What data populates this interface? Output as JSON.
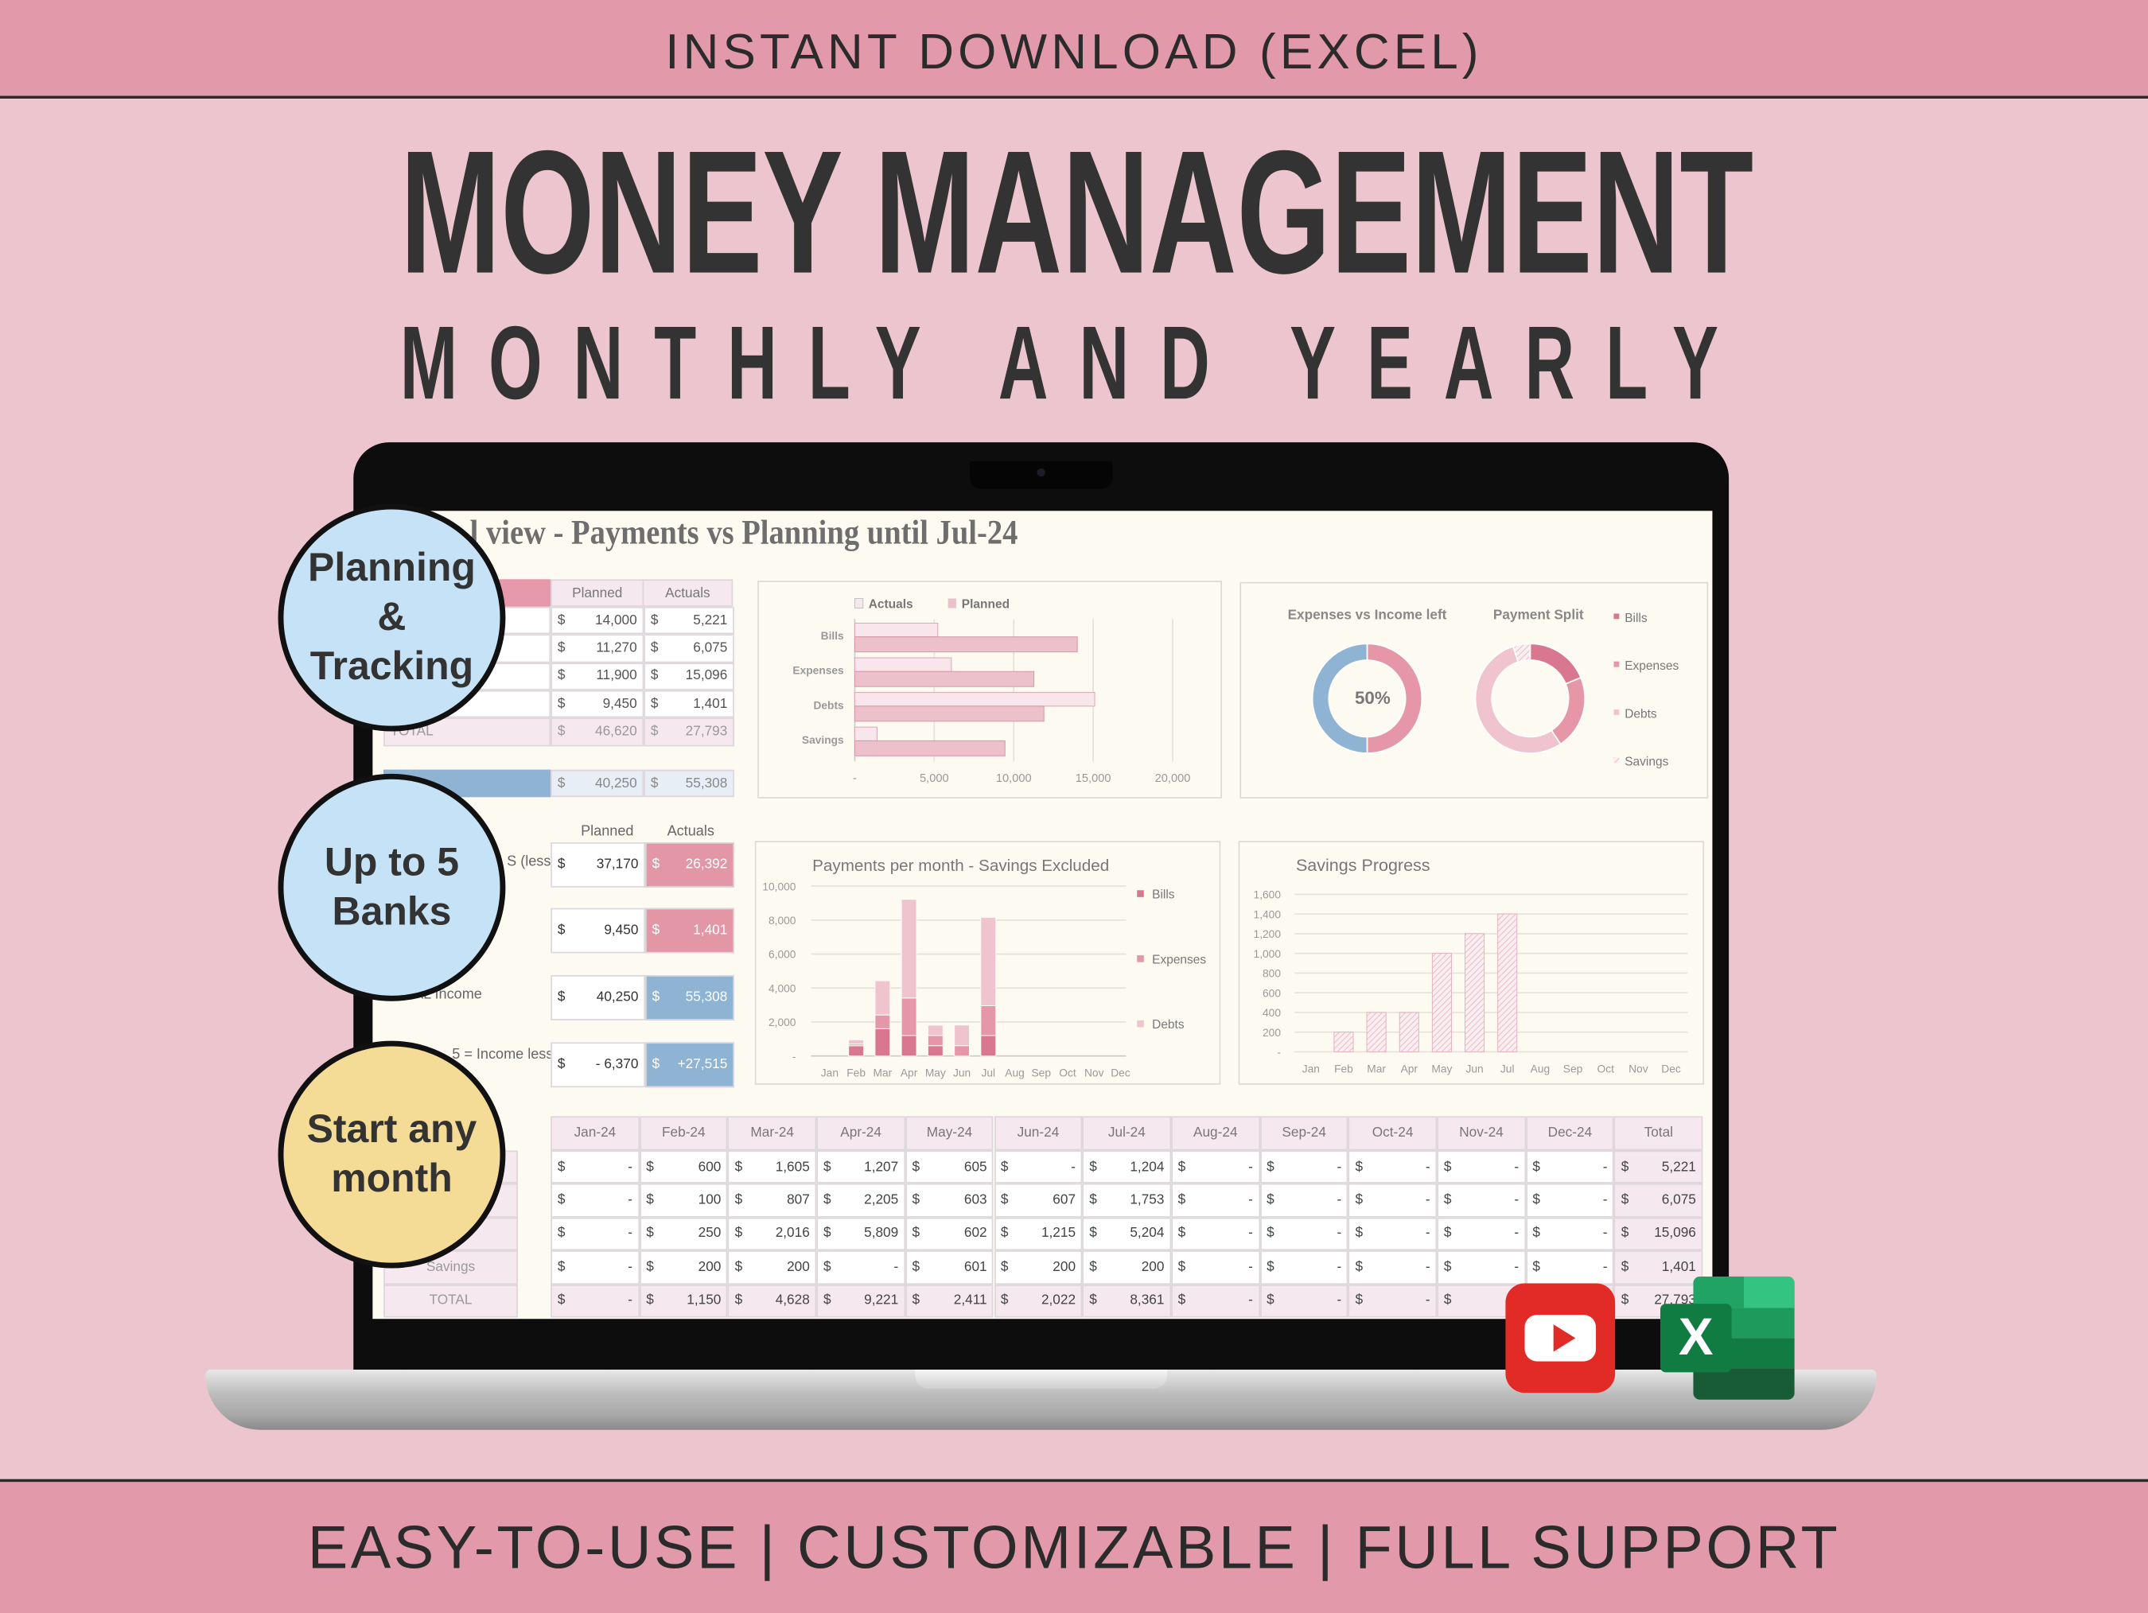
{
  "banner_top": "INSTANT DOWNLOAD (EXCEL)",
  "title": "MONEY MANAGEMENT",
  "subtitle": "MONTHLY AND YEARLY",
  "banner_bottom": "EASY-TO-USE | CUSTOMIZABLE | FULL SUPPORT",
  "badges": [
    {
      "lines": [
        "Planning",
        "&",
        "Tracking"
      ],
      "color": "#c5e2f7"
    },
    {
      "lines": [
        "Up to 5",
        "Banks"
      ],
      "color": "#c5e2f7"
    },
    {
      "lines": [
        "Start any",
        "month"
      ],
      "color": "#f5dc96"
    }
  ],
  "icons": {
    "youtube": "youtube-icon",
    "excel": "excel-icon",
    "excel_letter": "X"
  },
  "colors": {
    "bills": "#d9778f",
    "expenses": "#e597a8",
    "debts": "#f0c4cf",
    "savings": "#f6dbe2",
    "income": "#8fb3d3",
    "accent": "#e29aaa"
  },
  "sheet": {
    "title": "l view - Payments vs Planning until Jul-24",
    "currency": "$",
    "summary": {
      "headers": [
        "Planned",
        "Actuals"
      ],
      "rows": [
        {
          "planned": "14,000",
          "actual": "5,221"
        },
        {
          "planned": "11,270",
          "actual": "6,075"
        },
        {
          "planned": "11,900",
          "actual": "15,096"
        },
        {
          "planned": "9,450",
          "actual": "1,401"
        }
      ],
      "total": {
        "label": "TOTAL",
        "planned": "46,620",
        "actual": "27,793"
      },
      "income": {
        "planned": "40,250",
        "actual": "55,308"
      }
    },
    "kpis": {
      "headers": [
        "Planned",
        "Actuals"
      ],
      "items": [
        {
          "label": "S (less",
          "planned": "37,170",
          "actual": "26,392",
          "tone": "pink"
        },
        {
          "label": "",
          "planned": "9,450",
          "actual": "1,401",
          "tone": "pink"
        },
        {
          "label": "TOTAL Income",
          "planned": "40,250",
          "actual": "55,308",
          "tone": "blue"
        },
        {
          "label": "5 = Income less",
          "planned": "-   6,370",
          "actual": "+27,515",
          "tone": "blue"
        }
      ]
    },
    "monthly": {
      "headers": [
        "Jan-24",
        "Feb-24",
        "Mar-24",
        "Apr-24",
        "May-24",
        "Jun-24",
        "Jul-24",
        "Aug-24",
        "Sep-24",
        "Oct-24",
        "Nov-24",
        "Dec-24",
        "Total"
      ],
      "rows": [
        {
          "label": "",
          "values": [
            "-",
            "600",
            "1,605",
            "1,207",
            "605",
            "-",
            "1,204",
            "-",
            "-",
            "-",
            "-",
            "-",
            "5,221"
          ]
        },
        {
          "label": "",
          "values": [
            "-",
            "100",
            "807",
            "2,205",
            "603",
            "607",
            "1,753",
            "-",
            "-",
            "-",
            "-",
            "-",
            "6,075"
          ]
        },
        {
          "label": "",
          "values": [
            "-",
            "250",
            "2,016",
            "5,809",
            "602",
            "1,215",
            "5,204",
            "-",
            "-",
            "-",
            "-",
            "-",
            "15,096"
          ]
        },
        {
          "label": "Savings",
          "values": [
            "-",
            "200",
            "200",
            "-",
            "601",
            "200",
            "200",
            "-",
            "-",
            "-",
            "-",
            "-",
            "1,401"
          ]
        },
        {
          "label": "TOTAL",
          "values": [
            "-",
            "1,150",
            "4,628",
            "9,221",
            "2,411",
            "2,022",
            "8,361",
            "-",
            "-",
            "-",
            "-",
            "-",
            "27,793"
          ]
        }
      ]
    }
  },
  "chart_data": [
    {
      "type": "bar",
      "orientation": "horizontal",
      "categories": [
        "Bills",
        "Expenses",
        "Debts",
        "Savings"
      ],
      "series": [
        {
          "name": "Actuals",
          "values": [
            5221,
            6075,
            15096,
            1401
          ]
        },
        {
          "name": "Planned",
          "values": [
            14000,
            11270,
            11900,
            9450
          ]
        }
      ],
      "xlim": [
        0,
        20000
      ],
      "xticks": [
        "-",
        "5,000",
        "10,000",
        "15,000",
        "20,000"
      ],
      "grid": true,
      "legend": "top"
    },
    {
      "type": "pie",
      "donut": true,
      "title": "Expenses vs Income left",
      "values": [
        50,
        50
      ],
      "center_label": "50%"
    },
    {
      "type": "pie",
      "donut": true,
      "title": "Payment Split",
      "categories": [
        "Bills",
        "Expenses",
        "Debts",
        "Savings"
      ],
      "values": [
        5221,
        6075,
        15096,
        1401
      ],
      "legend": "right"
    },
    {
      "type": "bar",
      "stacked": true,
      "title": "Payments per month - Savings Excluded",
      "categories": [
        "Jan",
        "Feb",
        "Mar",
        "Apr",
        "May",
        "Jun",
        "Jul",
        "Aug",
        "Sep",
        "Oct",
        "Nov",
        "Dec"
      ],
      "series": [
        {
          "name": "Bills",
          "values": [
            0,
            600,
            1605,
            1207,
            605,
            0,
            1204,
            0,
            0,
            0,
            0,
            0
          ]
        },
        {
          "name": "Expenses",
          "values": [
            0,
            100,
            807,
            2205,
            603,
            607,
            1753,
            0,
            0,
            0,
            0,
            0
          ]
        },
        {
          "name": "Debts",
          "values": [
            0,
            250,
            2016,
            5809,
            602,
            1215,
            5204,
            0,
            0,
            0,
            0,
            0
          ]
        }
      ],
      "ylim": [
        0,
        10000
      ],
      "yticks": [
        "-",
        "2,000",
        "4,000",
        "6,000",
        "8,000",
        "10,000"
      ],
      "grid": true,
      "legend": "right"
    },
    {
      "type": "bar",
      "title": "Savings Progress",
      "categories": [
        "Jan",
        "Feb",
        "Mar",
        "Apr",
        "May",
        "Jun",
        "Jul",
        "Aug",
        "Sep",
        "Oct",
        "Nov",
        "Dec"
      ],
      "values": [
        0,
        200,
        400,
        400,
        1001,
        1201,
        1401,
        0,
        0,
        0,
        0,
        0
      ],
      "ylim": [
        0,
        1600
      ],
      "yticks": [
        "-",
        "200",
        "400",
        "600",
        "800",
        "1,000",
        "1,200",
        "1,400",
        "1,600"
      ],
      "grid": true
    }
  ]
}
